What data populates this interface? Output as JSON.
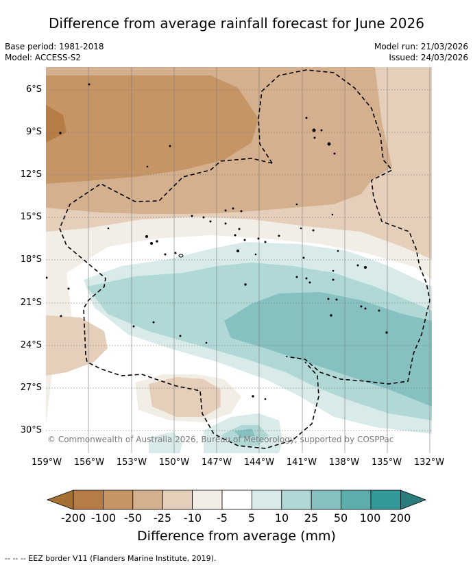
{
  "title": "Difference from average rainfall forecast for June 2026",
  "meta": {
    "base_period": "Base period: 1981-2018",
    "model": "Model: ACCESS-S2",
    "model_run": "Model run: 21/03/2026",
    "issued": "Issued: 24/03/2026"
  },
  "map": {
    "lat_ticks": [
      "6°S",
      "9°S",
      "12°S",
      "15°S",
      "18°S",
      "21°S",
      "24°S",
      "27°S",
      "30°S"
    ],
    "lon_ticks": [
      "159°W",
      "156°W",
      "153°W",
      "150°W",
      "147°W",
      "144°W",
      "141°W",
      "138°W",
      "135°W",
      "132°W"
    ],
    "copyright": "© Commonwealth of Australia 2026, Bureau of Meteorology, supported by COSPPac"
  },
  "colorbar": {
    "title": "Difference from average (mm)",
    "tick_labels": [
      "-200",
      "-100",
      "-50",
      "-25",
      "-10",
      "-5",
      "5",
      "10",
      "25",
      "50",
      "100",
      "200"
    ],
    "colors": [
      "#a66f33",
      "#b57c45",
      "#c59566",
      "#d5b08f",
      "#e5cfbb",
      "#f2eee6",
      "#ffffff",
      "#d8ebea",
      "#afd8d7",
      "#86c0bf",
      "#5cadab",
      "#33999a",
      "#2b7d7d"
    ]
  },
  "footer": "--  --  -- EEZ border V11 (Flanders Marine Institute, 2019)."
}
